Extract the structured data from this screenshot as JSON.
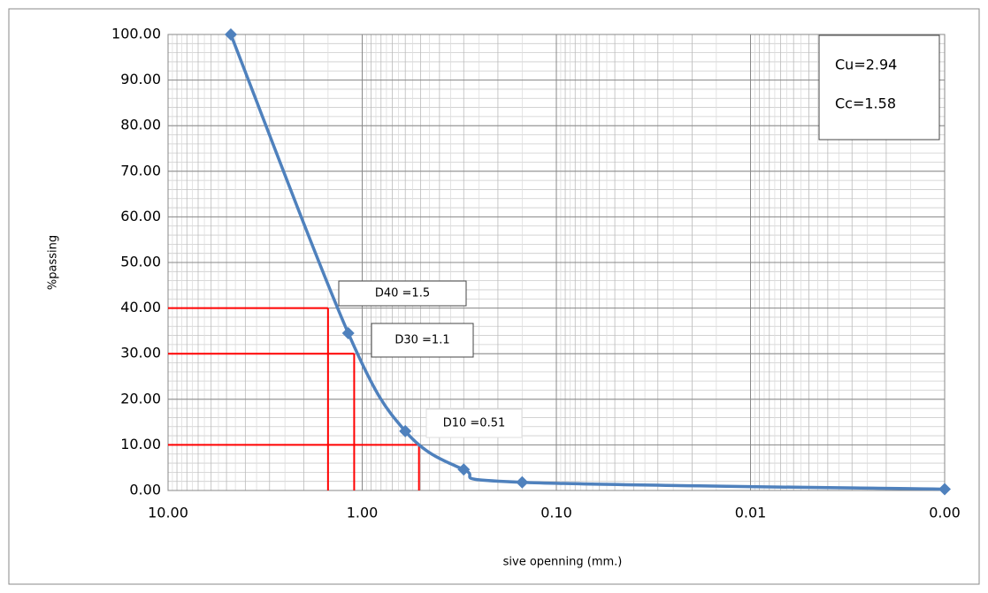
{
  "chart_data": {
    "type": "line",
    "x_label": "sive openning (mm.)",
    "y_label": "%passing",
    "log_x": true,
    "x_reversed": true,
    "grid": true,
    "x": [
      4.75,
      1.18,
      0.6,
      0.3,
      0.15,
      0.001
    ],
    "series": [
      {
        "color": "#4f81bd",
        "values": [
          100,
          34.5,
          13,
          4.6,
          1.8,
          0.3
        ]
      }
    ],
    "xlim": [
      10,
      0.001
    ],
    "xticks": [
      {
        "value": 10,
        "label": "10.00"
      },
      {
        "value": 1,
        "label": "1.00"
      },
      {
        "value": 0.1,
        "label": "0.10"
      },
      0.01,
      {
        "value": 0.001,
        "label": "0.00"
      }
    ],
    "ylim": [
      0,
      100
    ],
    "yticks": [
      {
        "value": 0,
        "label": "0.00"
      },
      {
        "value": 10,
        "label": "10.00"
      },
      {
        "value": 20,
        "label": "20.00"
      },
      {
        "value": 30,
        "label": "30.00"
      },
      {
        "value": 40,
        "label": "40.00"
      },
      {
        "value": 50,
        "label": "50.00"
      },
      {
        "value": 60,
        "label": "60.00"
      },
      {
        "value": 70,
        "label": "70.00"
      },
      {
        "value": 80,
        "label": "80.00"
      },
      {
        "value": 90,
        "label": "90.00"
      },
      {
        "value": 100,
        "label": "100.00"
      }
    ],
    "reference_lines": [
      {
        "label": "D40 =1.5",
        "x": 1.5,
        "y": 40
      },
      {
        "label": "D30 =1.1",
        "x": 1.1,
        "y": 30
      },
      {
        "label": "D10 =0.51",
        "x": 0.51,
        "y": 10
      }
    ],
    "reference_color": "#ff0000",
    "annotations": [
      "Cu=2.94",
      "Cc=1.58"
    ]
  }
}
